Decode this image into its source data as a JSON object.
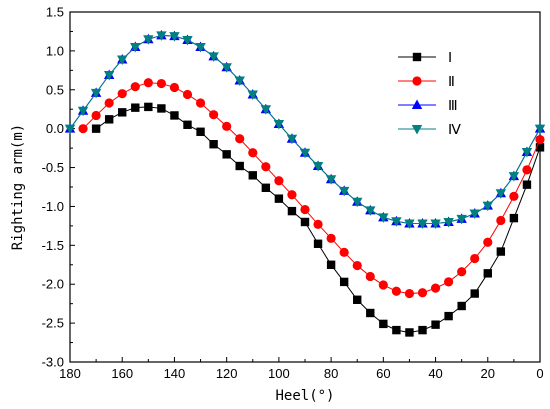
{
  "chart_data": {
    "type": "line",
    "title": "",
    "xlabel": "Heel(°)",
    "ylabel": "Righting arm(m)",
    "xlim": [
      180,
      0
    ],
    "ylim": [
      -3.0,
      1.5
    ],
    "x_reversed": true,
    "xticks": [
      "180",
      "160",
      "140",
      "120",
      "100",
      "80",
      "60",
      "40",
      "20",
      "0"
    ],
    "yticks": [
      "1.5",
      "1.0",
      "0.5",
      "0.0",
      "-0.5",
      "-1.0",
      "-1.5",
      "-2.0",
      "-2.5",
      "-3.0"
    ],
    "x_step": 5,
    "legend_position": "top-right",
    "grid": false,
    "series": [
      {
        "name": "Ⅰ",
        "color": "#000000",
        "marker": "square",
        "x": [
          170,
          165,
          160,
          155,
          150,
          145,
          140,
          135,
          130,
          125,
          120,
          115,
          110,
          105,
          100,
          95,
          90,
          85,
          80,
          75,
          70,
          65,
          60,
          55,
          50,
          45,
          40,
          35,
          30,
          25,
          20,
          15,
          10,
          5,
          0
        ],
        "y": [
          0.0,
          0.12,
          0.21,
          0.27,
          0.28,
          0.26,
          0.17,
          0.05,
          -0.04,
          -0.2,
          -0.33,
          -0.48,
          -0.6,
          -0.76,
          -0.9,
          -1.06,
          -1.2,
          -1.48,
          -1.75,
          -1.97,
          -2.2,
          -2.37,
          -2.51,
          -2.59,
          -2.62,
          -2.59,
          -2.52,
          -2.41,
          -2.28,
          -2.12,
          -1.86,
          -1.58,
          -1.15,
          -0.72,
          -0.24
        ]
      },
      {
        "name": "Ⅱ",
        "color": "#ff0000",
        "marker": "circle",
        "x": [
          175,
          170,
          165,
          160,
          155,
          150,
          145,
          140,
          135,
          130,
          125,
          120,
          115,
          110,
          105,
          100,
          95,
          90,
          85,
          80,
          75,
          70,
          65,
          60,
          55,
          50,
          45,
          40,
          35,
          30,
          25,
          20,
          15,
          10,
          5,
          0
        ],
        "y": [
          0.0,
          0.17,
          0.33,
          0.45,
          0.54,
          0.59,
          0.58,
          0.53,
          0.44,
          0.33,
          0.18,
          0.03,
          -0.13,
          -0.31,
          -0.49,
          -0.67,
          -0.85,
          -1.04,
          -1.23,
          -1.41,
          -1.59,
          -1.76,
          -1.9,
          -2.01,
          -2.09,
          -2.12,
          -2.11,
          -2.05,
          -1.97,
          -1.84,
          -1.67,
          -1.46,
          -1.18,
          -0.87,
          -0.53,
          -0.14
        ]
      },
      {
        "name": "Ⅲ",
        "color": "#0000ff",
        "marker": "triangle-up",
        "x": [
          180,
          175,
          170,
          165,
          160,
          155,
          150,
          145,
          140,
          135,
          130,
          125,
          120,
          115,
          110,
          105,
          100,
          95,
          90,
          85,
          80,
          75,
          70,
          65,
          60,
          55,
          50,
          45,
          40,
          35,
          30,
          25,
          20,
          15,
          10,
          5,
          0
        ],
        "y": [
          0.0,
          0.23,
          0.46,
          0.69,
          0.89,
          1.05,
          1.15,
          1.2,
          1.19,
          1.14,
          1.05,
          0.93,
          0.79,
          0.62,
          0.44,
          0.25,
          0.06,
          -0.13,
          -0.31,
          -0.48,
          -0.65,
          -0.8,
          -0.94,
          -1.05,
          -1.14,
          -1.19,
          -1.22,
          -1.22,
          -1.22,
          -1.2,
          -1.16,
          -1.09,
          -0.99,
          -0.83,
          -0.61,
          -0.3,
          0.0
        ]
      },
      {
        "name": "Ⅳ",
        "color": "#008080",
        "marker": "triangle-down",
        "x": [
          180,
          175,
          170,
          165,
          160,
          155,
          150,
          145,
          140,
          135,
          130,
          125,
          120,
          115,
          110,
          105,
          100,
          95,
          90,
          85,
          80,
          75,
          70,
          65,
          60,
          55,
          50,
          45,
          40,
          35,
          30,
          25,
          20,
          15,
          10,
          5,
          0
        ],
        "y": [
          0.0,
          0.23,
          0.46,
          0.69,
          0.89,
          1.05,
          1.15,
          1.2,
          1.19,
          1.14,
          1.05,
          0.93,
          0.79,
          0.62,
          0.44,
          0.25,
          0.06,
          -0.13,
          -0.31,
          -0.48,
          -0.65,
          -0.8,
          -0.94,
          -1.05,
          -1.14,
          -1.19,
          -1.22,
          -1.22,
          -1.22,
          -1.2,
          -1.16,
          -1.09,
          -0.99,
          -0.83,
          -0.61,
          -0.3,
          0.0
        ]
      }
    ]
  }
}
